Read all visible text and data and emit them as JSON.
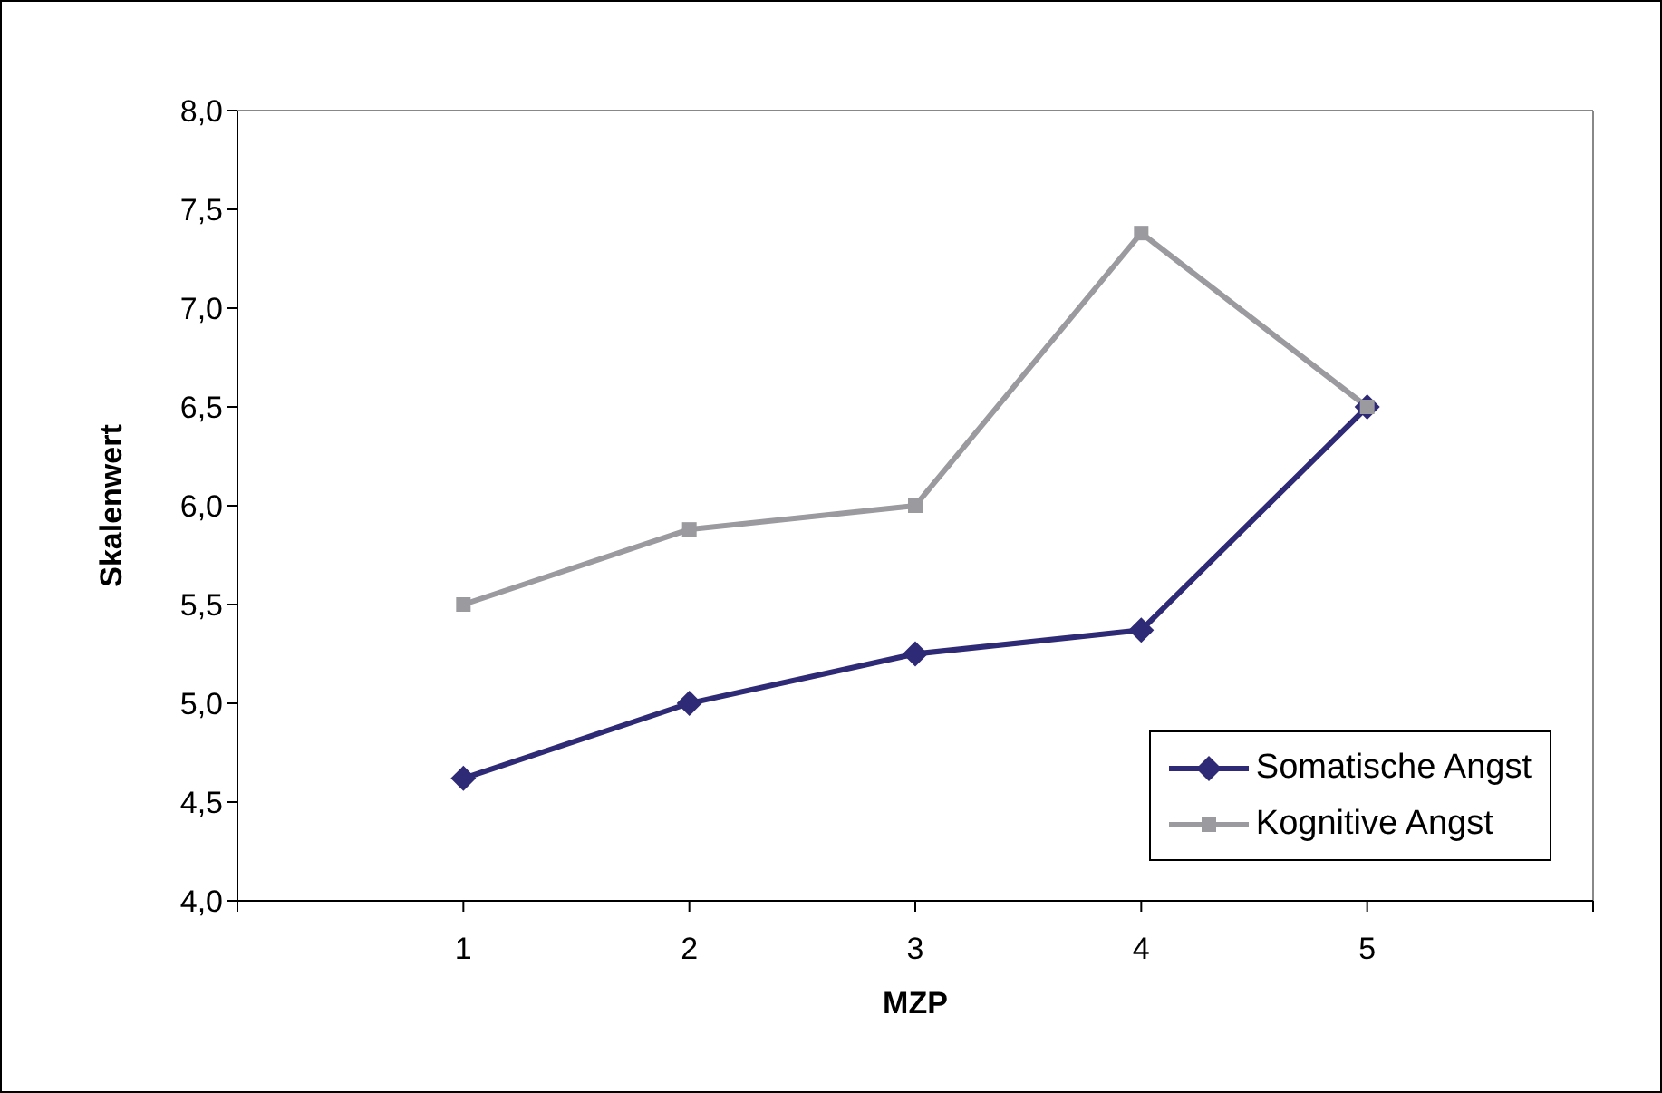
{
  "chart_data": {
    "type": "line",
    "xlabel": "MZP",
    "ylabel": "Skalenwert",
    "x": [
      1,
      2,
      3,
      4,
      5
    ],
    "xlim": [
      0,
      6
    ],
    "xticks": [
      {
        "value": 0,
        "label": null
      },
      1,
      2,
      3,
      4,
      5,
      {
        "value": 6,
        "label": null
      }
    ],
    "ylim": [
      4,
      8
    ],
    "yticks": [
      {
        "value": 4,
        "label": "4,0"
      },
      {
        "value": 4.5,
        "label": "4,5"
      },
      {
        "value": 5,
        "label": "5,0"
      },
      {
        "value": 5.5,
        "label": "5,5"
      },
      {
        "value": 6,
        "label": "6,0"
      },
      {
        "value": 6.5,
        "label": "6,5"
      },
      {
        "value": 7,
        "label": "7,0"
      },
      {
        "value": 7.5,
        "label": "7,5"
      },
      {
        "value": 8,
        "label": "8,0"
      }
    ],
    "grid": false,
    "legend": "bottom right",
    "line_style": "solid",
    "series": [
      {
        "name": "Somatische Angst",
        "color": "#2e2a75",
        "marker": "diamond",
        "values": [
          4.62,
          5.0,
          5.25,
          5.37,
          6.5
        ]
      },
      {
        "name": "Kognitive Angst",
        "color": "#9a9a9f",
        "marker": "square",
        "values": [
          5.5,
          5.88,
          6.0,
          7.38,
          6.5
        ]
      }
    ]
  }
}
